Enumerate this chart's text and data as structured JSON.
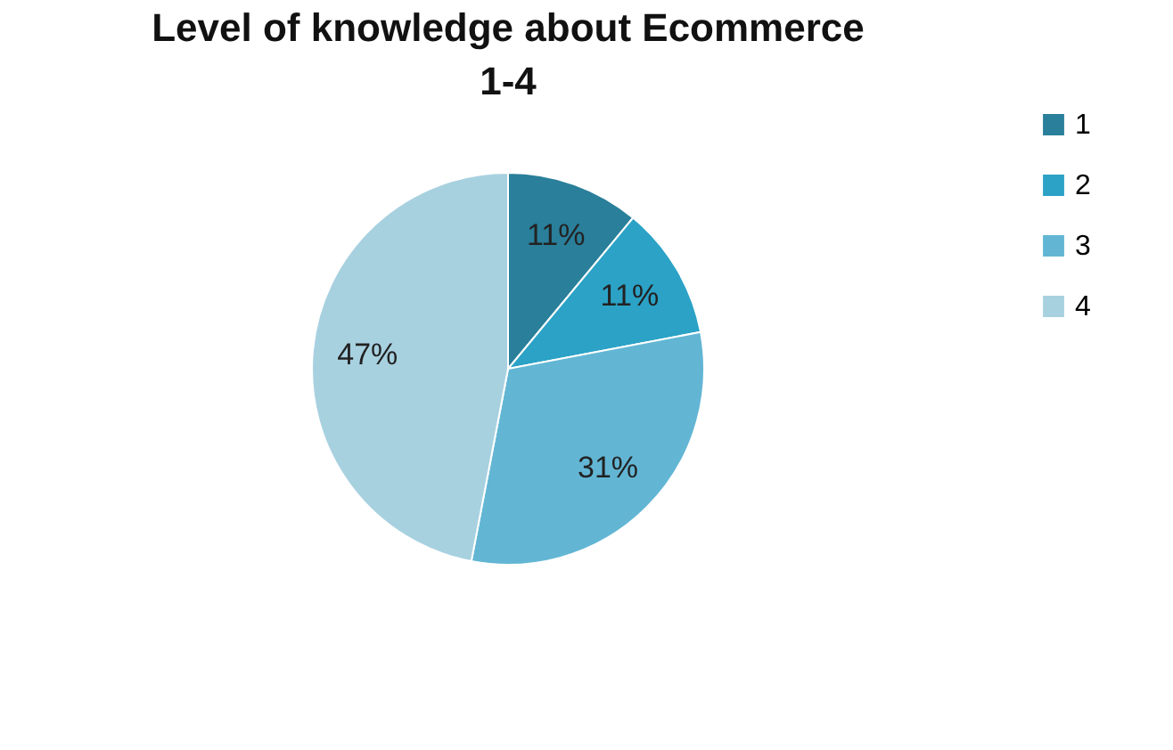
{
  "chart_data": {
    "type": "pie",
    "title": "Level of knowledge about Ecommerce\n1-4",
    "categories": [
      "1",
      "2",
      "3",
      "4"
    ],
    "values": [
      11,
      11,
      31,
      47
    ],
    "value_labels": [
      "11%",
      "11%",
      "31%",
      "47%"
    ],
    "colors": [
      "#2a7f9a",
      "#2ba2c6",
      "#62b6d4",
      "#a8d1e0"
    ],
    "legend": "right"
  }
}
